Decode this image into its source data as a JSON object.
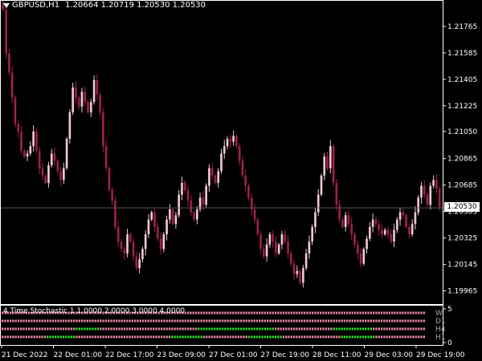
{
  "header": {
    "symbol": "GBPUSD,H1",
    "ohlc": "1.20664 1.20719 1.20530 1.20530"
  },
  "price_axis": {
    "labels": [
      "1.21765",
      "1.21585",
      "1.21405",
      "1.21225",
      "1.21050",
      "1.20865",
      "1.20685",
      "1.20505",
      "1.20325",
      "1.20145",
      "1.19965"
    ],
    "current_price": "1.20530"
  },
  "time_axis": {
    "labels": [
      "21 Dec 2022",
      "22 Dec 01:00",
      "22 Dec 17:00",
      "23 Dec 09:00",
      "27 Dec 01:00",
      "27 Dec 19:00",
      "28 Dec 11:00",
      "29 Dec 03:00",
      "29 Dec 19:00"
    ]
  },
  "indicator": {
    "title": "4 Time Stochastic 1 1.0000 2.0000 3.0000 4.0000",
    "rows": [
      "W",
      "D1",
      "H4",
      "H1"
    ],
    "scale_max": "5",
    "scale_min": "0",
    "colors": {
      "bear": "#e8869e",
      "bull": "#28e028"
    },
    "row_states": [
      {
        "row": "W",
        "bull_ranges": []
      },
      {
        "row": "D1",
        "bull_ranges": []
      },
      {
        "row": "H4",
        "bull_ranges": [
          [
            0.17,
            0.23
          ],
          [
            0.46,
            0.64
          ],
          [
            0.78,
            0.87
          ]
        ]
      },
      {
        "row": "H1",
        "bull_ranges": [
          [
            0.1,
            0.17
          ],
          [
            0.4,
            0.47
          ],
          [
            0.58,
            0.66
          ],
          [
            0.8,
            0.88
          ]
        ]
      }
    ]
  },
  "chart_data": {
    "type": "candlestick",
    "ylim": [
      1.19875,
      1.21945
    ],
    "colors": {
      "bull": "#f0c8d0",
      "bear": "#9e1f52",
      "grid": "#1e1e1e",
      "price_line": "#555555"
    },
    "closes": [
      1.2188,
      1.2158,
      1.2145,
      1.2128,
      1.211,
      1.2105,
      1.2092,
      1.2088,
      1.209,
      1.2095,
      1.2105,
      1.2092,
      1.208,
      1.2075,
      1.207,
      1.2082,
      1.209,
      1.2085,
      1.2078,
      1.2072,
      1.208,
      1.21,
      1.2118,
      1.2135,
      1.2128,
      1.2122,
      1.2132,
      1.2125,
      1.2118,
      1.2125,
      1.214,
      1.213,
      1.2118,
      1.2095,
      1.208,
      1.2065,
      1.2058,
      1.204,
      1.203,
      1.2025,
      1.2022,
      1.2035,
      1.203,
      1.202,
      1.2012,
      1.2018,
      1.2025,
      1.2035,
      1.2045,
      1.205,
      1.204,
      1.2032,
      1.2025,
      1.2035,
      1.2045,
      1.2052,
      1.2042,
      1.2048,
      1.2062,
      1.207,
      1.2065,
      1.2058,
      1.205,
      1.2045,
      1.2052,
      1.206,
      1.2055,
      1.2068,
      1.208,
      1.2075,
      1.207,
      1.2078,
      1.209,
      1.2095,
      1.21,
      1.2098,
      1.2102,
      1.2095,
      1.2085,
      1.2075,
      1.2068,
      1.206,
      1.2052,
      1.2045,
      1.2035,
      1.2025,
      1.202,
      1.2028,
      1.2035,
      1.203,
      1.2022,
      1.2028,
      1.2035,
      1.203,
      1.2022,
      1.2015,
      1.2008,
      1.201,
      1.2002,
      1.2012,
      1.2022,
      1.203,
      1.204,
      1.205,
      1.2062,
      1.2075,
      1.2088,
      1.208,
      1.2095,
      1.207,
      1.2055,
      1.2045,
      1.204,
      1.2048,
      1.2042,
      1.2035,
      1.2028,
      1.2022,
      1.2015,
      1.2025,
      1.2032,
      1.204,
      1.2045,
      1.2042,
      1.2038,
      1.2035,
      1.2038,
      1.2035,
      1.203,
      1.2038,
      1.2045,
      1.205,
      1.2048,
      1.204,
      1.2035,
      1.2042,
      1.205,
      1.206,
      1.2068,
      1.2062,
      1.2055,
      1.2068,
      1.2072,
      1.2066,
      1.2053
    ]
  }
}
